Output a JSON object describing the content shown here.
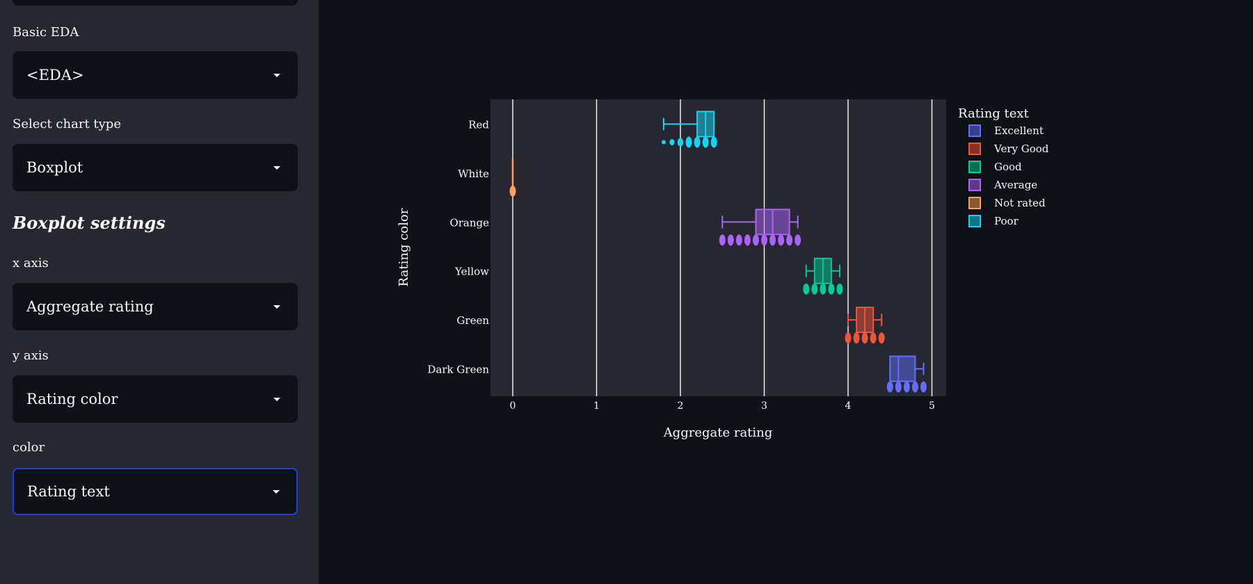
{
  "sidebar": {
    "top_select_value": "",
    "fields": [
      {
        "label": "Basic EDA",
        "value": "<EDA>"
      },
      {
        "label": "Select chart type",
        "value": "Boxplot"
      }
    ],
    "settings_heading": "Boxplot settings",
    "settings_fields": [
      {
        "label": "x axis",
        "value": "Aggregate rating"
      },
      {
        "label": "y axis",
        "value": "Rating color"
      },
      {
        "label": "color",
        "value": "Rating text"
      }
    ]
  },
  "colors": {
    "sidebar_bg": "#262730",
    "main_bg": "#0e1117",
    "plot_bg": "#262730",
    "focus_border": "#1c3ee8"
  },
  "chart_data": {
    "type": "box",
    "orientation": "horizontal",
    "xlabel": "Aggregate rating",
    "ylabel": "Rating color",
    "xlim": [
      -0.27,
      5.17
    ],
    "xticks": [
      0,
      1,
      2,
      3,
      4,
      5
    ],
    "categories": [
      "Red",
      "White",
      "Orange",
      "Yellow",
      "Green",
      "Dark Green"
    ],
    "grid": "vertical",
    "legend": {
      "title": "Rating text",
      "placement": "right",
      "entries": [
        "Excellent",
        "Very Good",
        "Good",
        "Average",
        "Not rated",
        "Poor"
      ]
    },
    "series": [
      {
        "name": "Poor",
        "category": "Red",
        "color": "#19d3f3",
        "min": 1.8,
        "q1": 2.2,
        "median": 2.3,
        "q3": 2.4,
        "max": 2.4,
        "points": [
          1.8,
          1.9,
          2.0,
          2.1,
          2.2,
          2.3,
          2.4
        ]
      },
      {
        "name": "Not rated",
        "category": "White",
        "color": "#ffa15a",
        "min": 0,
        "q1": 0,
        "median": 0,
        "q3": 0,
        "max": 0,
        "points": [
          0
        ]
      },
      {
        "name": "Average",
        "category": "Orange",
        "color": "#ab63fa",
        "min": 2.5,
        "q1": 2.9,
        "median": 3.1,
        "q3": 3.3,
        "max": 3.4,
        "points": [
          2.5,
          2.6,
          2.7,
          2.8,
          2.9,
          3.0,
          3.1,
          3.2,
          3.3,
          3.4
        ]
      },
      {
        "name": "Good",
        "category": "Yellow",
        "color": "#00cc96",
        "min": 3.5,
        "q1": 3.6,
        "median": 3.7,
        "q3": 3.8,
        "max": 3.9,
        "points": [
          3.5,
          3.6,
          3.7,
          3.8,
          3.9
        ]
      },
      {
        "name": "Very Good",
        "category": "Green",
        "color": "#ef553b",
        "min": 4.0,
        "q1": 4.1,
        "median": 4.2,
        "q3": 4.3,
        "max": 4.4,
        "points": [
          4.0,
          4.1,
          4.2,
          4.3,
          4.4
        ]
      },
      {
        "name": "Excellent",
        "category": "Dark Green",
        "color": "#636efa",
        "min": 4.5,
        "q1": 4.5,
        "median": 4.6,
        "q3": 4.8,
        "max": 4.9,
        "points": [
          4.5,
          4.6,
          4.7,
          4.8,
          4.9
        ]
      }
    ]
  }
}
